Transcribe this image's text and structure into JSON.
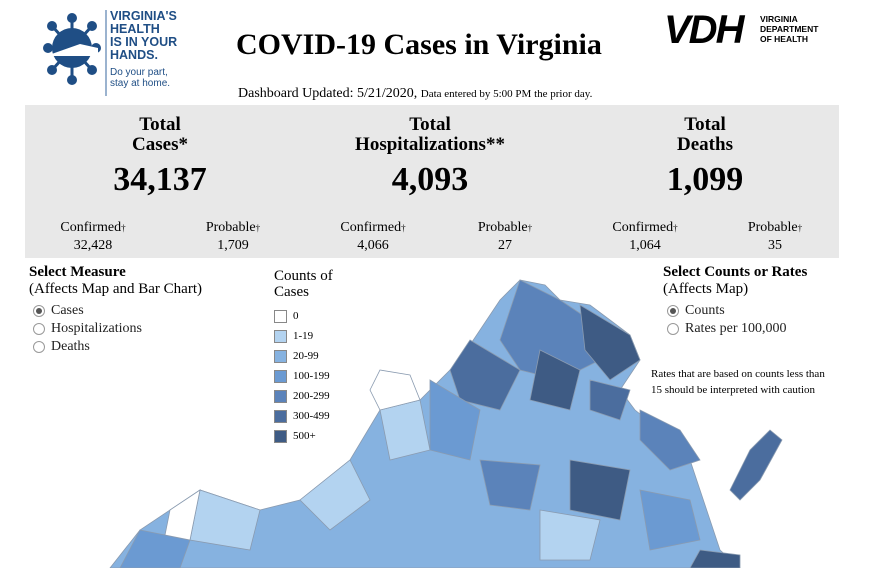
{
  "logo_left": {
    "lines": [
      "VIRGINIA'S",
      "HEALTH",
      "IS IN YOUR",
      "HANDS."
    ],
    "sub": [
      "Do your part,",
      "stay at home."
    ]
  },
  "title": "COVID-19 Cases in Virginia",
  "logo_right": {
    "big": "VDH",
    "small": [
      "VIRGINIA",
      "DEPARTMENT",
      "OF HEALTH"
    ]
  },
  "updated": {
    "label": "Dashboard Updated: 5/21/2020,",
    "note": "Data entered by 5:00 PM the prior day."
  },
  "stats": [
    {
      "title1": "Total",
      "title2": "Cases*",
      "value": "34,137",
      "confirmed_label": "Confirmed",
      "confirmed": "32,428",
      "probable_label": "Probable",
      "probable": "1,709"
    },
    {
      "title1": "Total",
      "title2": "Hospitalizations**",
      "value": "4,093",
      "confirmed_label": "Confirmed",
      "confirmed": "4,066",
      "probable_label": "Probable",
      "probable": "27"
    },
    {
      "title1": "Total",
      "title2": "Deaths",
      "value": "1,099",
      "confirmed_label": "Confirmed",
      "confirmed": "1,064",
      "probable_label": "Probable",
      "probable": "35"
    }
  ],
  "dagger": "†",
  "measure": {
    "title": "Select Measure",
    "subtitle": "(Affects Map and Bar Chart)",
    "options": [
      "Cases",
      "Hospitalizations",
      "Deaths"
    ],
    "selected": "Cases"
  },
  "legend": {
    "title1": "Counts of",
    "title2": "Cases",
    "items": [
      {
        "label": "0",
        "color": "#ffffff"
      },
      {
        "label": "1-19",
        "color": "#b3d3f0"
      },
      {
        "label": "20-99",
        "color": "#86b2e0"
      },
      {
        "label": "100-199",
        "color": "#6b9ad2"
      },
      {
        "label": "200-299",
        "color": "#5b83ba"
      },
      {
        "label": "300-499",
        "color": "#4b6d9e"
      },
      {
        "label": "500+",
        "color": "#3e5b84"
      }
    ]
  },
  "counts_rates": {
    "title": "Select Counts or Rates",
    "subtitle": "(Affects Map)",
    "options": [
      "Counts",
      "Rates per 100,000"
    ],
    "selected": "Counts"
  },
  "caution": "Rates that are based on counts less than 15 should be interpreted with caution"
}
